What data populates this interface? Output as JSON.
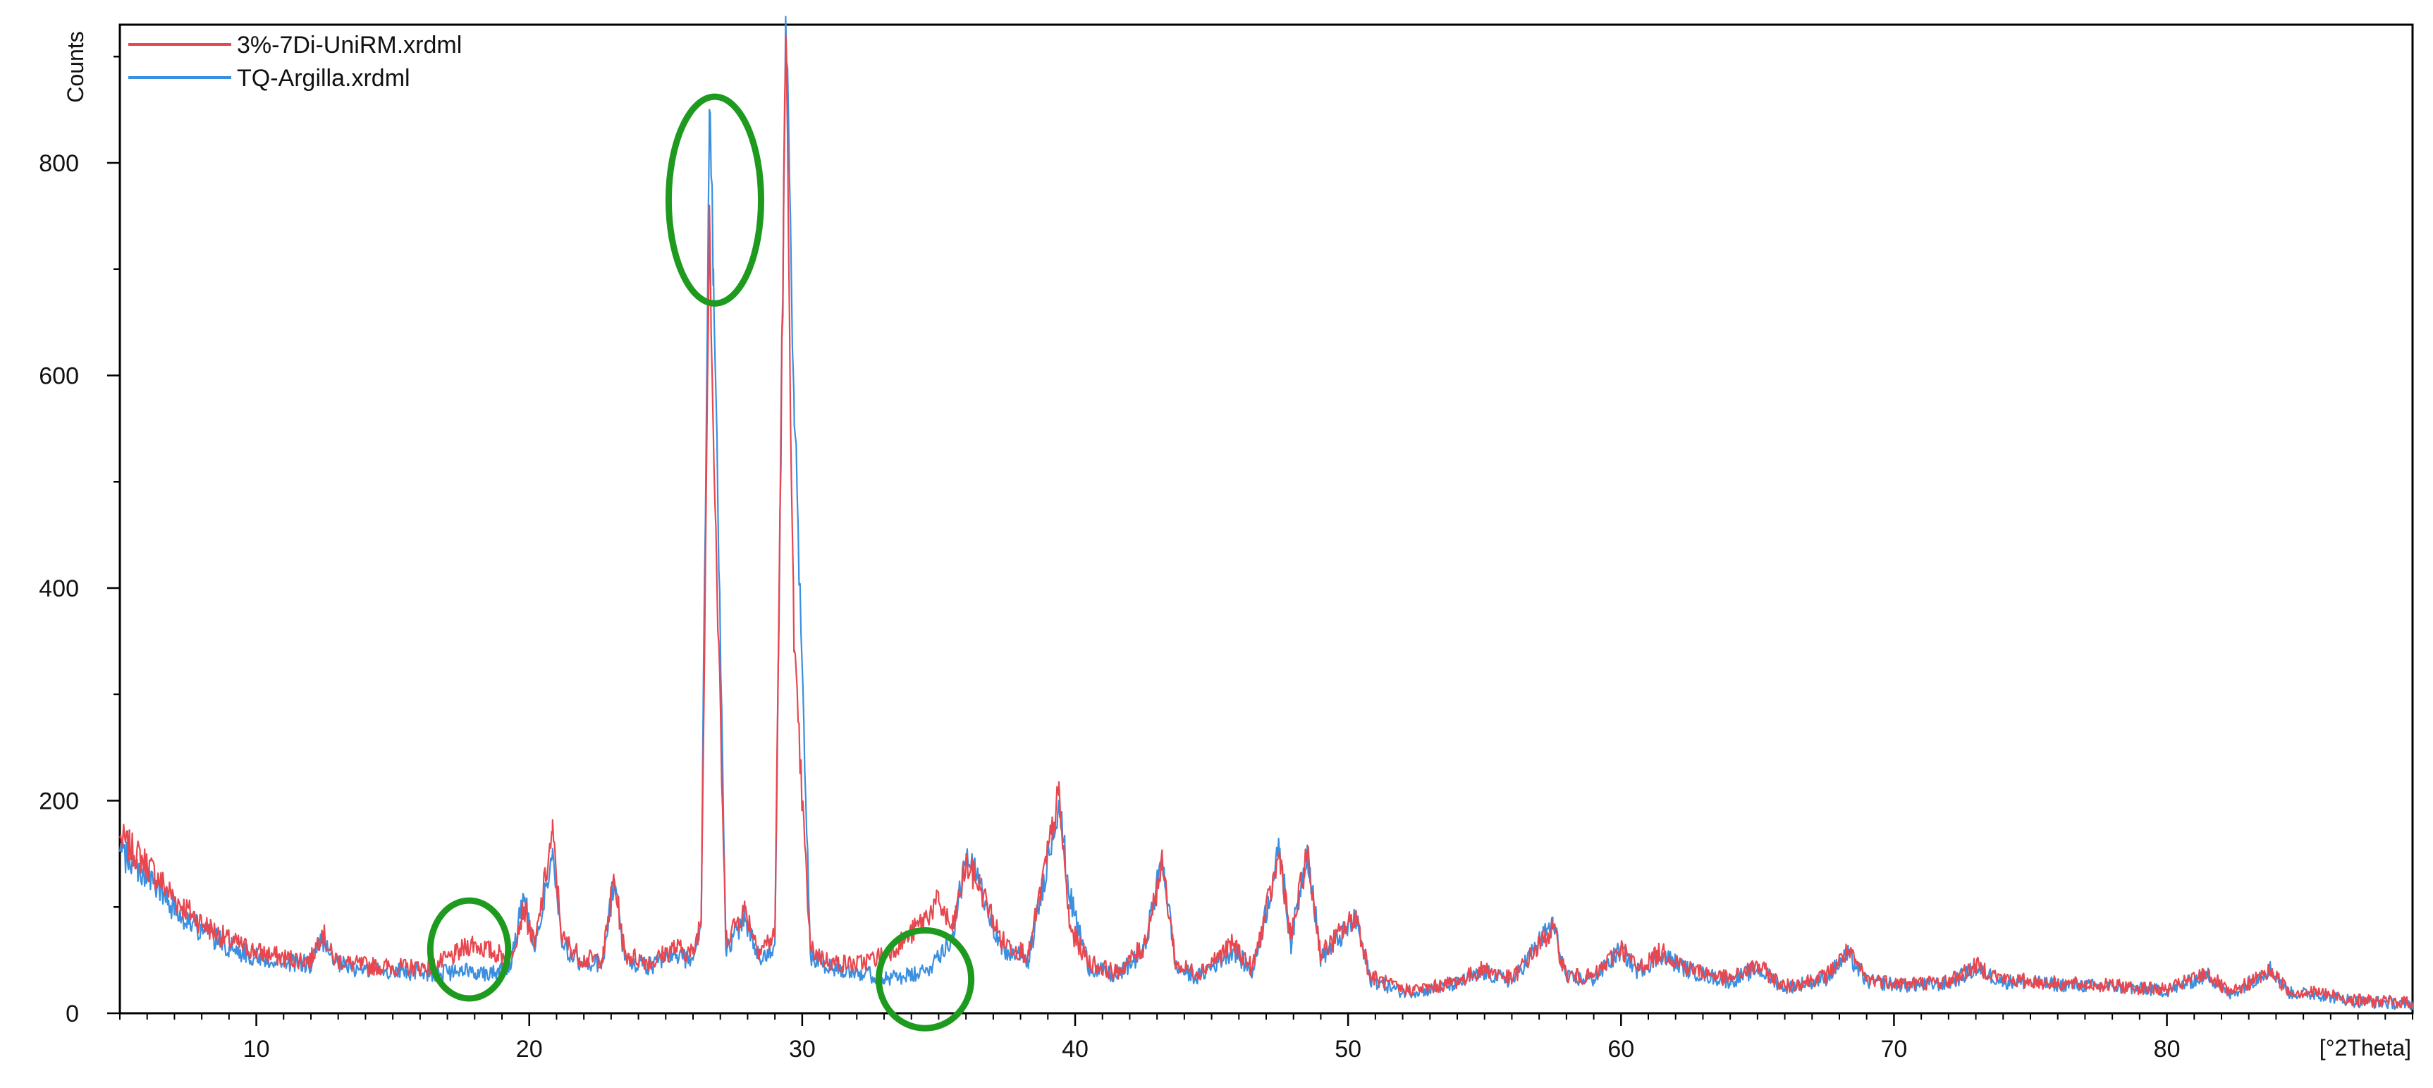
{
  "chart_data": {
    "type": "line",
    "title": "",
    "xlabel": "[°2Theta]",
    "ylabel": "Counts",
    "xlim": [
      5,
      89
    ],
    "ylim": [
      0,
      930
    ],
    "x_ticks": [
      10,
      20,
      30,
      40,
      50,
      60,
      70,
      80
    ],
    "y_ticks": [
      0,
      200,
      400,
      600,
      800
    ],
    "grid": false,
    "legend_position": "top-left",
    "series": [
      {
        "name": "3%-7Di-UniRM.xrdml",
        "color": "#e8474f",
        "points": [
          [
            5,
            165
          ],
          [
            6,
            140
          ],
          [
            7,
            108
          ],
          [
            8,
            85
          ],
          [
            9,
            68
          ],
          [
            10,
            58
          ],
          [
            11,
            52
          ],
          [
            12,
            50
          ],
          [
            12.4,
            78
          ],
          [
            12.8,
            52
          ],
          [
            13.5,
            46
          ],
          [
            14.5,
            44
          ],
          [
            15.5,
            43
          ],
          [
            16.5,
            44
          ],
          [
            17.3,
            55
          ],
          [
            17.9,
            66
          ],
          [
            18.6,
            58
          ],
          [
            19.3,
            52
          ],
          [
            19.8,
            100
          ],
          [
            20.2,
            62
          ],
          [
            20.85,
            170
          ],
          [
            21.2,
            70
          ],
          [
            22,
            50
          ],
          [
            22.7,
            52
          ],
          [
            23.1,
            128
          ],
          [
            23.5,
            55
          ],
          [
            24.5,
            48
          ],
          [
            25.3,
            62
          ],
          [
            26,
            56
          ],
          [
            26.3,
            90
          ],
          [
            26.6,
            760
          ],
          [
            26.75,
            540
          ],
          [
            27.2,
            70
          ],
          [
            27.9,
            98
          ],
          [
            28.4,
            60
          ],
          [
            29,
            72
          ],
          [
            29.4,
            920
          ],
          [
            29.7,
            340
          ],
          [
            30.3,
            60
          ],
          [
            31,
            48
          ],
          [
            32,
            46
          ],
          [
            33,
            55
          ],
          [
            33.9,
            72
          ],
          [
            34.5,
            90
          ],
          [
            35,
            105
          ],
          [
            35.5,
            78
          ],
          [
            36,
            140
          ],
          [
            36.5,
            120
          ],
          [
            37.3,
            68
          ],
          [
            38.3,
            55
          ],
          [
            39.4,
            205
          ],
          [
            39.8,
            80
          ],
          [
            40.5,
            48
          ],
          [
            41.5,
            38
          ],
          [
            42.5,
            62
          ],
          [
            43.2,
            140
          ],
          [
            43.7,
            45
          ],
          [
            44.5,
            38
          ],
          [
            45.8,
            65
          ],
          [
            46.5,
            42
          ],
          [
            47.5,
            150
          ],
          [
            47.9,
            70
          ],
          [
            48.5,
            150
          ],
          [
            49,
            55
          ],
          [
            50.3,
            92
          ],
          [
            50.8,
            35
          ],
          [
            52,
            22
          ],
          [
            53,
            24
          ],
          [
            54,
            30
          ],
          [
            55,
            42
          ],
          [
            56,
            32
          ],
          [
            57.5,
            80
          ],
          [
            58,
            35
          ],
          [
            59,
            34
          ],
          [
            60,
            62
          ],
          [
            60.6,
            42
          ],
          [
            61.5,
            58
          ],
          [
            62.5,
            42
          ],
          [
            64,
            32
          ],
          [
            65,
            45
          ],
          [
            66,
            25
          ],
          [
            67.5,
            35
          ],
          [
            68.3,
            58
          ],
          [
            69,
            32
          ],
          [
            70.5,
            28
          ],
          [
            72,
            30
          ],
          [
            73,
            45
          ],
          [
            74,
            32
          ],
          [
            76,
            28
          ],
          [
            78,
            26
          ],
          [
            80,
            22
          ],
          [
            81.5,
            38
          ],
          [
            82.3,
            18
          ],
          [
            83.8,
            40
          ],
          [
            84.5,
            20
          ],
          [
            85.5,
            20
          ],
          [
            87,
            12
          ],
          [
            89,
            10
          ]
        ]
      },
      {
        "name": "TQ-Argilla.xrdml",
        "color": "#3a8fe0",
        "points": [
          [
            5,
            152
          ],
          [
            6,
            128
          ],
          [
            7,
            98
          ],
          [
            8,
            78
          ],
          [
            9,
            62
          ],
          [
            10,
            53
          ],
          [
            11,
            48
          ],
          [
            12,
            46
          ],
          [
            12.4,
            70
          ],
          [
            12.8,
            48
          ],
          [
            13.5,
            42
          ],
          [
            14.5,
            40
          ],
          [
            15.5,
            39
          ],
          [
            16.5,
            38
          ],
          [
            17.3,
            38
          ],
          [
            17.9,
            40
          ],
          [
            18.6,
            38
          ],
          [
            19.3,
            45
          ],
          [
            19.8,
            110
          ],
          [
            20.2,
            58
          ],
          [
            20.85,
            150
          ],
          [
            21.2,
            62
          ],
          [
            22,
            45
          ],
          [
            22.7,
            48
          ],
          [
            23.1,
            125
          ],
          [
            23.5,
            50
          ],
          [
            24.5,
            44
          ],
          [
            25.3,
            55
          ],
          [
            26,
            50
          ],
          [
            26.3,
            85
          ],
          [
            26.6,
            850
          ],
          [
            26.75,
            700
          ],
          [
            27.2,
            60
          ],
          [
            27.9,
            90
          ],
          [
            28.4,
            52
          ],
          [
            29,
            65
          ],
          [
            29.4,
            930
          ],
          [
            29.7,
            580
          ],
          [
            30.3,
            55
          ],
          [
            31,
            44
          ],
          [
            32,
            40
          ],
          [
            33,
            32
          ],
          [
            33.9,
            35
          ],
          [
            34.5,
            38
          ],
          [
            35,
            55
          ],
          [
            35.5,
            72
          ],
          [
            36,
            145
          ],
          [
            36.5,
            125
          ],
          [
            37.3,
            60
          ],
          [
            38.3,
            50
          ],
          [
            39.4,
            200
          ],
          [
            39.8,
            110
          ],
          [
            40.5,
            44
          ],
          [
            41.5,
            34
          ],
          [
            42.5,
            58
          ],
          [
            43.2,
            145
          ],
          [
            43.7,
            42
          ],
          [
            44.5,
            34
          ],
          [
            45.8,
            60
          ],
          [
            46.5,
            38
          ],
          [
            47.5,
            155
          ],
          [
            47.9,
            65
          ],
          [
            48.5,
            155
          ],
          [
            49,
            52
          ],
          [
            50.3,
            88
          ],
          [
            50.8,
            32
          ],
          [
            52,
            20
          ],
          [
            53,
            22
          ],
          [
            54,
            28
          ],
          [
            55,
            38
          ],
          [
            56,
            30
          ],
          [
            57.5,
            85
          ],
          [
            58,
            33
          ],
          [
            59,
            32
          ],
          [
            60,
            60
          ],
          [
            60.6,
            40
          ],
          [
            61.5,
            55
          ],
          [
            62.5,
            40
          ],
          [
            64,
            30
          ],
          [
            65,
            42
          ],
          [
            66,
            24
          ],
          [
            67.5,
            33
          ],
          [
            68.3,
            55
          ],
          [
            69,
            30
          ],
          [
            70.5,
            26
          ],
          [
            72,
            28
          ],
          [
            73,
            42
          ],
          [
            74,
            30
          ],
          [
            76,
            27
          ],
          [
            78,
            25
          ],
          [
            80,
            21
          ],
          [
            81.5,
            36
          ],
          [
            82.3,
            17
          ],
          [
            83.8,
            42
          ],
          [
            84.5,
            19
          ],
          [
            85.5,
            18
          ],
          [
            87,
            11
          ],
          [
            89,
            9
          ]
        ]
      }
    ],
    "annotations": [
      {
        "shape": "ellipse",
        "color": "#1e9a1e",
        "center": [
          17.8,
          60
        ]
      },
      {
        "shape": "ellipse",
        "color": "#1e9a1e",
        "center": [
          26.8,
          765
        ]
      },
      {
        "shape": "ellipse",
        "color": "#1e9a1e",
        "center": [
          34.5,
          32
        ]
      }
    ]
  }
}
